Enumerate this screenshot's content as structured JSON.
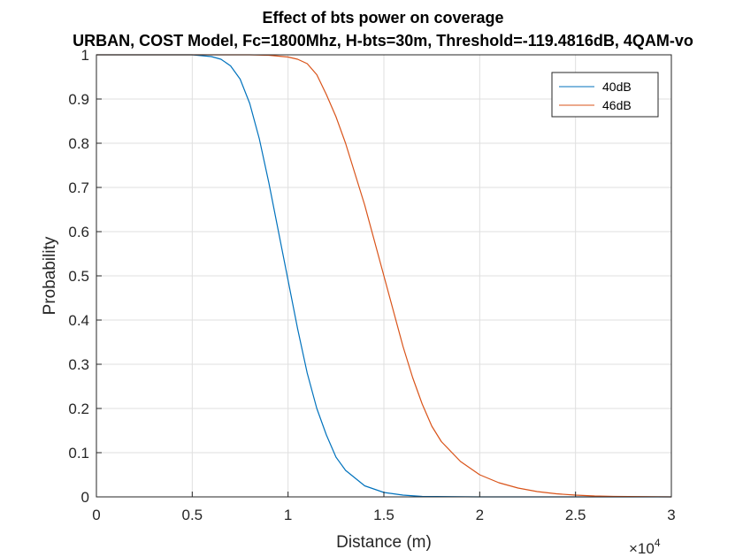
{
  "chart_data": {
    "type": "line",
    "title": "Effect of bts power on coverage",
    "subtitle": "URBAN, COST Model, Fc=1800Mhz, H-bts=30m, Threshold=-119.4816dB, 4QAM-vo",
    "xlabel": "Distance (m)",
    "ylabel": "Probability",
    "x_exponent_label": "×10",
    "x_exponent_power": "4",
    "xlim": [
      0,
      30000
    ],
    "ylim": [
      0,
      1
    ],
    "x_ticks": [
      0,
      5000,
      10000,
      15000,
      20000,
      25000,
      30000
    ],
    "x_tick_labels": [
      "0",
      "0.5",
      "1",
      "1.5",
      "2",
      "2.5",
      "3"
    ],
    "y_ticks": [
      0,
      0.1,
      0.2,
      0.3,
      0.4,
      0.5,
      0.6,
      0.7,
      0.8,
      0.9,
      1
    ],
    "y_tick_labels": [
      "0",
      "0.1",
      "0.2",
      "0.3",
      "0.4",
      "0.5",
      "0.6",
      "0.7",
      "0.8",
      "0.9",
      "1"
    ],
    "grid": true,
    "legend_position": "top-right",
    "series": [
      {
        "name": "40dB",
        "color": "#0072BD",
        "x": [
          0,
          5000,
          6000,
          6500,
          7000,
          7500,
          8000,
          8500,
          9000,
          9500,
          10000,
          10500,
          11000,
          11500,
          12000,
          12500,
          13000,
          14000,
          15000,
          16000,
          17000,
          20000,
          30000
        ],
        "y": [
          1,
          1,
          0.996,
          0.99,
          0.975,
          0.945,
          0.89,
          0.81,
          0.71,
          0.6,
          0.49,
          0.38,
          0.28,
          0.2,
          0.14,
          0.09,
          0.06,
          0.025,
          0.01,
          0.004,
          0.001,
          0,
          0
        ]
      },
      {
        "name": "46dB",
        "color": "#D95319",
        "x": [
          0,
          8000,
          9000,
          10000,
          10500,
          11000,
          11500,
          12000,
          12500,
          13000,
          13500,
          14000,
          14500,
          15000,
          15500,
          16000,
          16500,
          17000,
          17500,
          18000,
          19000,
          20000,
          21000,
          22000,
          23000,
          24000,
          25000,
          26000,
          27000,
          30000
        ],
        "y": [
          1,
          1,
          0.999,
          0.995,
          0.99,
          0.98,
          0.955,
          0.91,
          0.86,
          0.8,
          0.73,
          0.66,
          0.58,
          0.5,
          0.42,
          0.34,
          0.27,
          0.21,
          0.16,
          0.125,
          0.08,
          0.05,
          0.032,
          0.02,
          0.012,
          0.007,
          0.004,
          0.002,
          0.001,
          0
        ]
      }
    ]
  }
}
